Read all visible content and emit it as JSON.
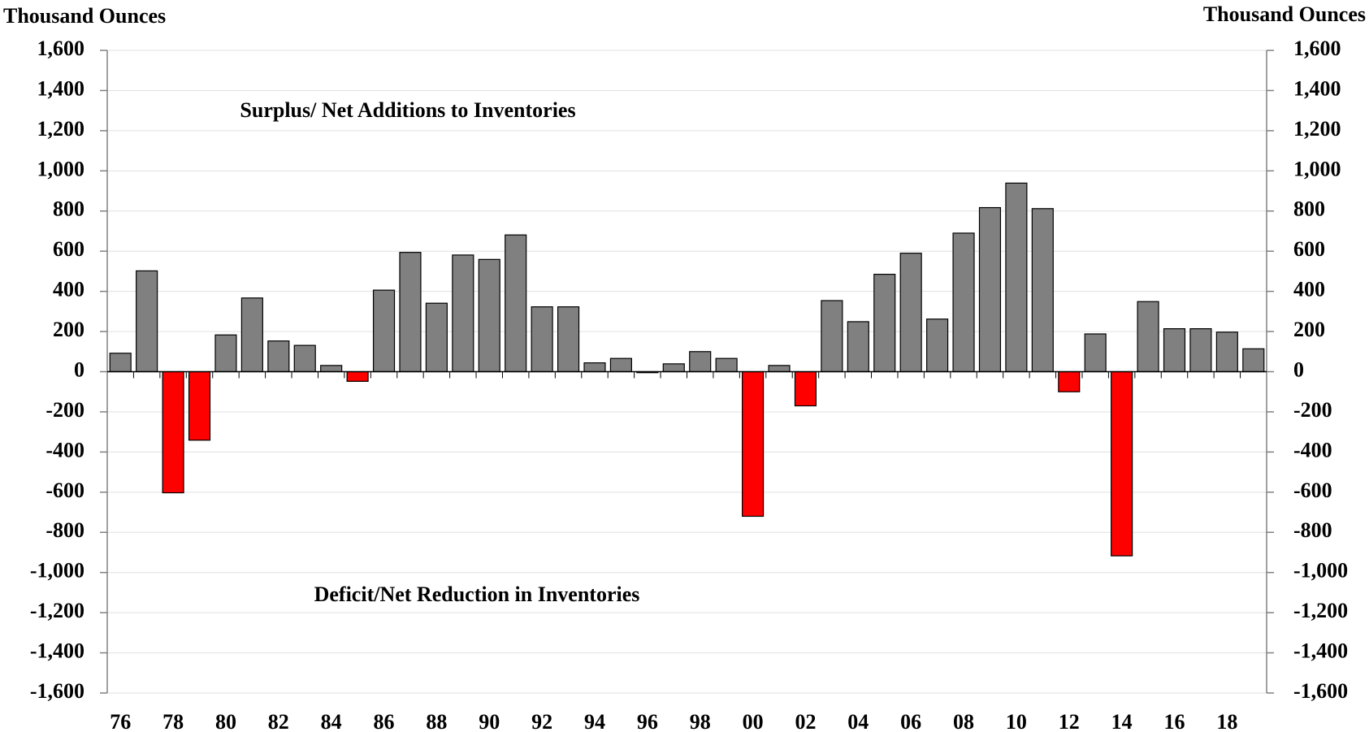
{
  "chart_data": {
    "type": "bar",
    "ylabel": "Thousand Ounces",
    "y2label": "Thousand Ounces",
    "annotations": [
      "Surplus/ Net Additions to Inventories",
      "Deficit/Net Reduction in Inventories"
    ],
    "categories": [
      "76",
      null,
      "78",
      null,
      "80",
      null,
      "82",
      null,
      "84",
      null,
      "86",
      null,
      "88",
      null,
      "90",
      null,
      "92",
      null,
      "94",
      null,
      "96",
      null,
      "98",
      null,
      "00",
      null,
      "02",
      null,
      "04",
      null,
      "06",
      null,
      "08",
      null,
      "10",
      null,
      "12",
      null,
      "14",
      null,
      "16",
      null,
      "18",
      null
    ],
    "values": [
      92,
      502,
      -603,
      -341,
      183,
      367,
      153,
      131,
      31,
      -48,
      406,
      594,
      341,
      581,
      559,
      681,
      323,
      323,
      44,
      66,
      -5,
      39,
      100,
      66,
      -720,
      31,
      -170,
      354,
      249,
      485,
      590,
      262,
      690,
      817,
      939,
      812,
      -100,
      188,
      -917,
      349,
      214,
      214,
      197,
      114
    ],
    "color": "#808080",
    "negative_color": "#ff0000",
    "ylim": [
      -1600,
      1600
    ],
    "yticks": [
      {
        "value": -1600,
        "label": "-1,600"
      },
      {
        "value": -1400,
        "label": "-1,400"
      },
      {
        "value": -1200,
        "label": "-1,200"
      },
      {
        "value": -1000,
        "label": "-1,000"
      },
      -800,
      -600,
      -400,
      -200,
      0,
      200,
      400,
      600,
      800,
      {
        "value": 1000,
        "label": "1,000"
      },
      {
        "value": 1200,
        "label": "1,200"
      },
      {
        "value": 1400,
        "label": "1,400"
      },
      {
        "value": 1600,
        "label": "1,600"
      }
    ],
    "y2lim": [
      -1600,
      1600
    ],
    "y2ticks": [
      {
        "value": -1600,
        "label": "-1,600"
      },
      {
        "value": -1400,
        "label": "-1,400"
      },
      {
        "value": -1200,
        "label": "-1,200"
      },
      {
        "value": -1000,
        "label": "-1,000"
      },
      -800,
      -600,
      -400,
      -200,
      0,
      200,
      400,
      600,
      800,
      {
        "value": 1000,
        "label": "1,000"
      },
      {
        "value": 1200,
        "label": "1,200"
      },
      {
        "value": 1400,
        "label": "1,400"
      },
      {
        "value": 1600,
        "label": "1,600"
      }
    ],
    "grid": true
  }
}
